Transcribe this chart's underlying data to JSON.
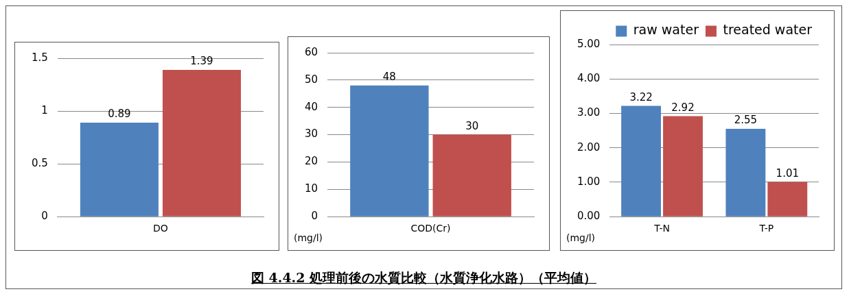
{
  "chart_data": [
    {
      "type": "bar",
      "categories": [
        "DO"
      ],
      "series": [
        {
          "color": "#4f81bd",
          "values": [
            0.89
          ]
        },
        {
          "color": "#c0504d",
          "values": [
            1.39
          ]
        }
      ],
      "ylim": [
        0,
        1.5
      ],
      "yticks": [
        0,
        0.5,
        1,
        1.5
      ],
      "grid": "y",
      "data_labels": true,
      "legend": false
    },
    {
      "type": "bar",
      "categories": [
        "COD(Cr)"
      ],
      "series": [
        {
          "color": "#4f81bd",
          "values": [
            48
          ]
        },
        {
          "color": "#c0504d",
          "values": [
            30
          ]
        }
      ],
      "ylim": [
        0,
        60
      ],
      "yticks": [
        0,
        10,
        20,
        30,
        40,
        50,
        60
      ],
      "grid": "y",
      "data_labels": true,
      "legend": false,
      "annotations": [
        "(mg/l)"
      ]
    },
    {
      "type": "bar",
      "categories": [
        "T-N",
        "T-P"
      ],
      "series": [
        {
          "name": "raw water",
          "color": "#4f81bd",
          "values": [
            3.22,
            2.55
          ]
        },
        {
          "name": "treated water",
          "color": "#c0504d",
          "values": [
            2.92,
            1.01
          ]
        }
      ],
      "ylim": [
        0,
        5
      ],
      "yticks": [
        {
          "value": 0,
          "label": "0.00"
        },
        {
          "value": 1,
          "label": "1.00"
        },
        {
          "value": 2,
          "label": "2.00"
        },
        {
          "value": 3,
          "label": "3.00"
        },
        {
          "value": 4,
          "label": "4.00"
        },
        {
          "value": 5,
          "label": "5.00"
        }
      ],
      "grid": "y",
      "data_labels": true,
      "legend": "top right",
      "annotations": [
        "(mg/l)"
      ]
    },
    {
      "type": "other",
      "title": "図 4.4.2  処理前後の水質比較（水質浄化水路）（平均値）"
    }
  ]
}
